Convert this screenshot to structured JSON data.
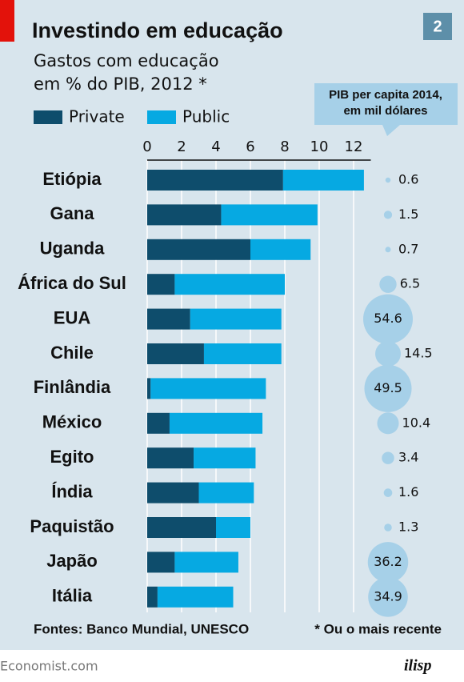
{
  "page_number": 2,
  "chart_data": {
    "type": "bar",
    "orientation": "horizontal",
    "stacked": true,
    "title": "Investindo em educação",
    "subtitle": [
      "Gastos com educação",
      "em % do PIB, 2012 *"
    ],
    "categories": [
      "Etiópia",
      "Gana",
      "Uganda",
      "África do Sul",
      "EUA",
      "Chile",
      "Finlândia",
      "México",
      "Egito",
      "Índia",
      "Paquistão",
      "Japão",
      "Itália"
    ],
    "series": [
      {
        "name": "Private",
        "color": "#0e4d6c",
        "values": [
          7.9,
          4.3,
          6.0,
          1.6,
          2.5,
          3.3,
          0.2,
          1.3,
          2.7,
          3.0,
          4.0,
          1.6,
          0.6
        ]
      },
      {
        "name": "Public",
        "color": "#06a9e2",
        "values": [
          4.7,
          5.6,
          3.5,
          6.4,
          5.3,
          4.5,
          6.7,
          5.4,
          3.6,
          3.2,
          2.0,
          3.7,
          4.4
        ]
      }
    ],
    "xlim": [
      0,
      13
    ],
    "xticks": [
      0,
      2,
      4,
      6,
      8,
      10,
      12
    ],
    "grid": true,
    "bubbles": {
      "title": [
        "PIB per capita 2014,",
        "em mil dólares"
      ],
      "color": "#a6d0e8",
      "values": [
        0.6,
        1.5,
        0.7,
        6.5,
        54.6,
        14.5,
        49.5,
        10.4,
        3.4,
        1.6,
        1.3,
        36.2,
        34.9
      ]
    },
    "source": "Fontes: Banco Mundial, UNESCO",
    "note": "* Ou o mais recente"
  },
  "footer": {
    "site": "Economist.com",
    "logo": "ilisp"
  }
}
